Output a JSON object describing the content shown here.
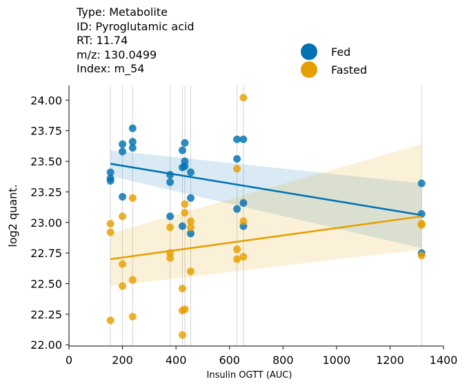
{
  "info": {
    "type_line": "Type: Metabolite",
    "id_line": "ID: Pyroglutamic acid",
    "rt_line": "RT: 11.74",
    "mz_line": "m/z: 130.0499",
    "index_line": "Index: m_54"
  },
  "colors": {
    "fed": "#0072b2",
    "fasted": "#e69f00",
    "vline": "#d3d3d3"
  },
  "chart_data": {
    "type": "scatter",
    "title": "",
    "xlabel": "Insulin OGTT (AUC)",
    "ylabel": "log2 quant.",
    "xlim": [
      0,
      1400
    ],
    "ylim": [
      21.99,
      24.12
    ],
    "xticks": [
      "0",
      "200",
      "400",
      "600",
      "800",
      "1000",
      "1200",
      "1400"
    ],
    "yticks": [
      "22.00",
      "22.25",
      "22.50",
      "22.75",
      "23.00",
      "23.25",
      "23.50",
      "23.75",
      "24.00"
    ],
    "grid": false,
    "legend_position": "top-right",
    "vertical_lines_x": [
      155,
      200,
      238,
      378,
      424,
      433,
      455,
      628,
      652,
      1318
    ],
    "series": [
      {
        "name": "Fed",
        "points": [
          [
            155,
            23.41
          ],
          [
            155,
            23.36
          ],
          [
            155,
            23.34
          ],
          [
            200,
            23.64
          ],
          [
            200,
            23.58
          ],
          [
            200,
            23.21
          ],
          [
            238,
            23.77
          ],
          [
            238,
            23.66
          ],
          [
            238,
            23.61
          ],
          [
            378,
            23.39
          ],
          [
            378,
            23.33
          ],
          [
            378,
            23.05
          ],
          [
            424,
            23.59
          ],
          [
            424,
            23.45
          ],
          [
            424,
            22.97
          ],
          [
            433,
            23.65
          ],
          [
            433,
            23.5
          ],
          [
            433,
            23.46
          ],
          [
            455,
            23.41
          ],
          [
            455,
            23.2
          ],
          [
            455,
            22.91
          ],
          [
            628,
            23.68
          ],
          [
            628,
            23.52
          ],
          [
            628,
            23.11
          ],
          [
            652,
            23.68
          ],
          [
            652,
            23.16
          ],
          [
            652,
            22.97
          ],
          [
            1318,
            23.32
          ],
          [
            1318,
            23.07
          ],
          [
            1318,
            22.75
          ]
        ],
        "fit": {
          "x": [
            155,
            1318
          ],
          "y": [
            23.48,
            23.06
          ]
        },
        "band": {
          "x": [
            155,
            1318
          ],
          "upper": [
            23.59,
            23.32
          ],
          "lower": [
            23.38,
            22.79
          ]
        }
      },
      {
        "name": "Fasted",
        "points": [
          [
            155,
            22.99
          ],
          [
            155,
            22.92
          ],
          [
            155,
            22.2
          ],
          [
            200,
            23.05
          ],
          [
            200,
            22.66
          ],
          [
            200,
            22.48
          ],
          [
            238,
            23.2
          ],
          [
            238,
            22.53
          ],
          [
            238,
            22.23
          ],
          [
            378,
            22.96
          ],
          [
            378,
            22.75
          ],
          [
            378,
            22.71
          ],
          [
            424,
            22.46
          ],
          [
            424,
            22.28
          ],
          [
            424,
            22.08
          ],
          [
            433,
            23.15
          ],
          [
            433,
            23.08
          ],
          [
            433,
            22.29
          ],
          [
            455,
            23.01
          ],
          [
            455,
            22.96
          ],
          [
            455,
            22.6
          ],
          [
            628,
            23.44
          ],
          [
            628,
            22.78
          ],
          [
            628,
            22.7
          ],
          [
            652,
            24.02
          ],
          [
            652,
            23.01
          ],
          [
            652,
            22.72
          ],
          [
            1318,
            22.99
          ],
          [
            1318,
            22.98
          ],
          [
            1318,
            22.73
          ]
        ],
        "fit": {
          "x": [
            155,
            1318
          ],
          "y": [
            22.7,
            23.05
          ]
        },
        "band": {
          "x": [
            155,
            1318
          ],
          "upper": [
            22.91,
            23.64
          ],
          "lower": [
            22.48,
            22.78
          ]
        }
      }
    ]
  }
}
